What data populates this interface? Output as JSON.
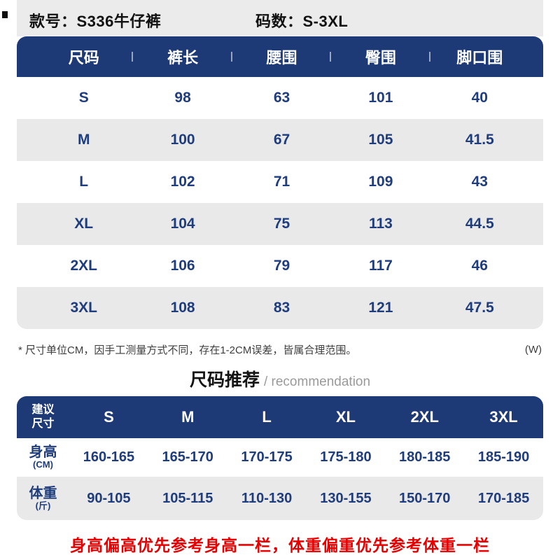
{
  "page": {
    "style_label": "款号：S336牛仔裤",
    "size_range_label": "码数：S-3XL"
  },
  "size_table": {
    "columns": [
      "尺码",
      "裤长",
      "腰围",
      "臀围",
      "脚口围"
    ],
    "rows": [
      {
        "size": "S",
        "length": "98",
        "waist": "63",
        "hip": "101",
        "leg_opening": "40"
      },
      {
        "size": "M",
        "length": "100",
        "waist": "67",
        "hip": "105",
        "leg_opening": "41.5"
      },
      {
        "size": "L",
        "length": "102",
        "waist": "71",
        "hip": "109",
        "leg_opening": "43"
      },
      {
        "size": "XL",
        "length": "104",
        "waist": "75",
        "hip": "113",
        "leg_opening": "44.5"
      },
      {
        "size": "2XL",
        "length": "106",
        "waist": "79",
        "hip": "117",
        "leg_opening": "46"
      },
      {
        "size": "3XL",
        "length": "108",
        "waist": "83",
        "hip": "121",
        "leg_opening": "47.5"
      }
    ]
  },
  "note": {
    "text": "* 尺寸单位CM，因手工测量方式不同，存在1-2CM误差，皆属合理范围。",
    "watermark": "(W)"
  },
  "recommendation": {
    "title": "尺码推荐",
    "subtitle": "/ recommendation",
    "header_label": "建议\n尺寸",
    "sizes": [
      "S",
      "M",
      "L",
      "XL",
      "2XL",
      "3XL"
    ],
    "height_label": "身高",
    "height_unit": "(CM)",
    "height_values": [
      "160-165",
      "165-170",
      "170-175",
      "175-180",
      "180-185",
      "185-190"
    ],
    "weight_label": "体重",
    "weight_unit": "(斤)",
    "weight_values": [
      "90-105",
      "105-115",
      "110-130",
      "130-155",
      "150-170",
      "170-185"
    ]
  },
  "footer": {
    "tip": "身高偏高优先参考身高一栏，体重偏重优先参考体重一栏"
  },
  "colors": {
    "navy": "#1d3a76",
    "stripe_gray": "#e9e9e9",
    "top_band_gray": "#ecebeb",
    "value_text": "#1f3d7d",
    "tip_red": "#e80000"
  }
}
